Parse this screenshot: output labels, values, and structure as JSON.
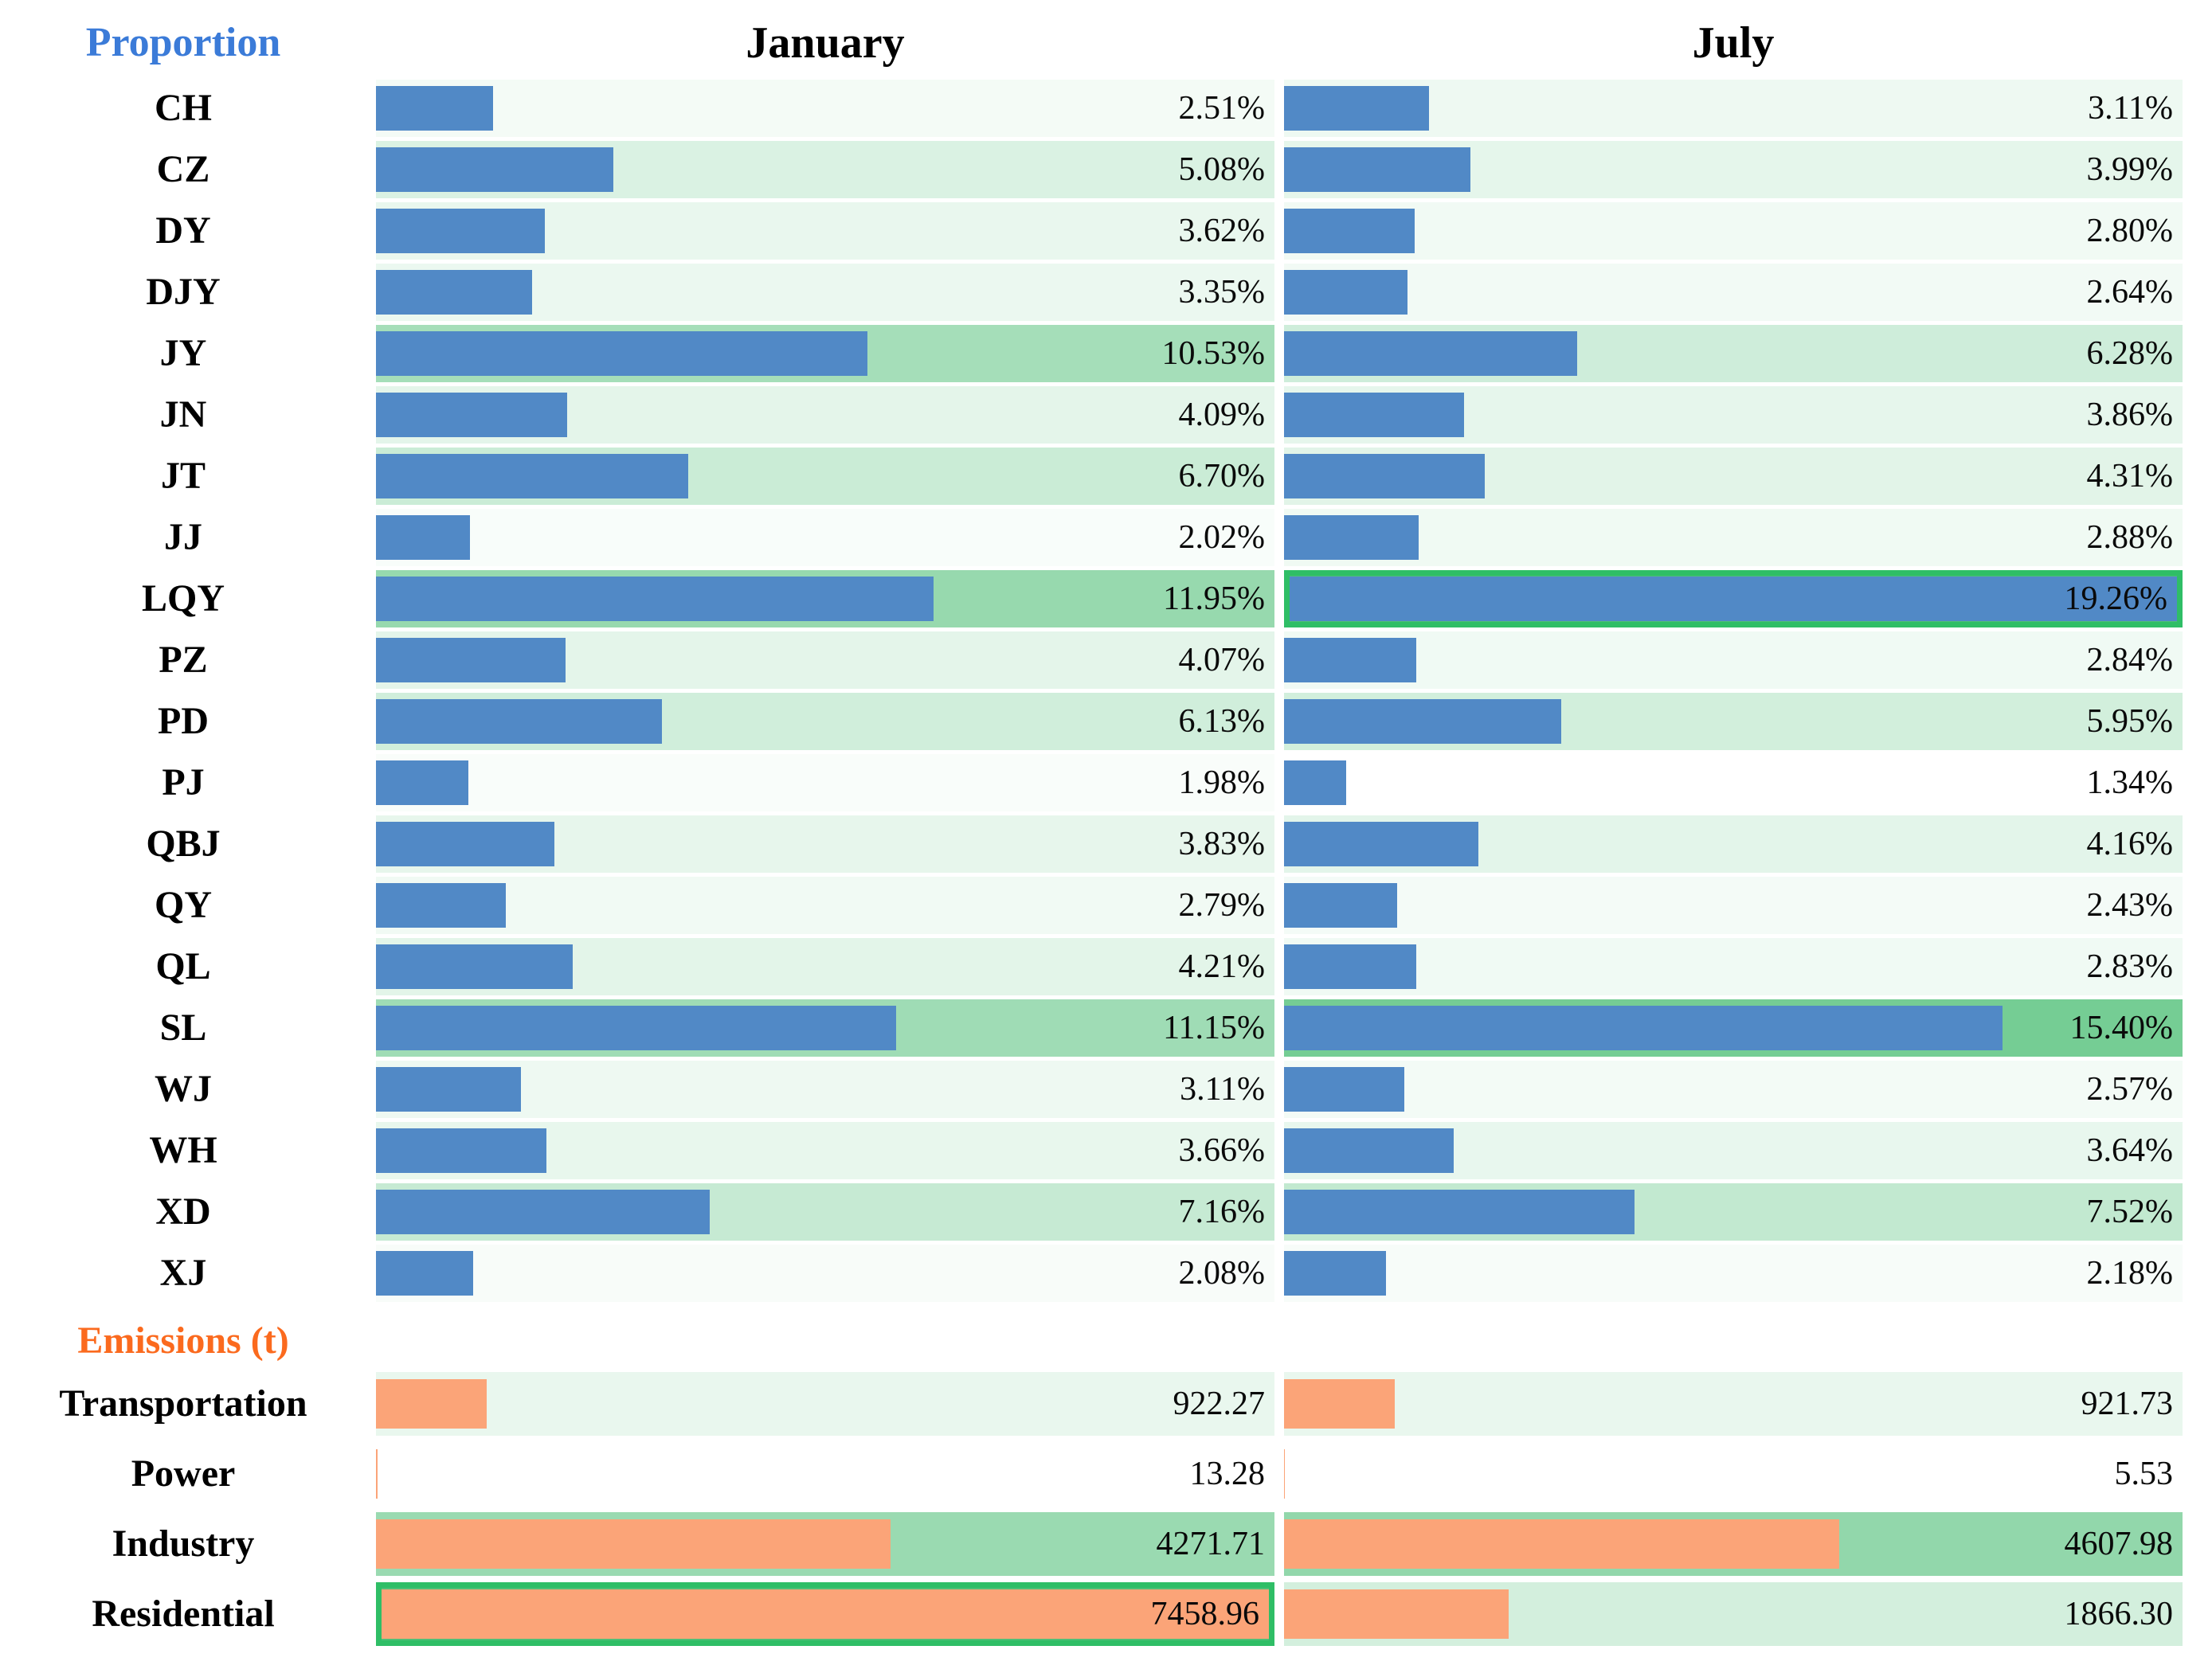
{
  "header": {
    "proportion": "Proportion",
    "january": "January",
    "july": "July",
    "emissions": "Emissions (t)"
  },
  "colors": {
    "blue_bar": "#5189C6",
    "orange_bar": "#FBA478",
    "highlight_border": "#2FBE66",
    "scale_min_color": "#FFFFFF",
    "scale_max_color": "#4FBF77",
    "proportion_header": "#3B7BD8",
    "emissions_header": "#FB6A1E",
    "month_header": "#000000",
    "value_text": "#0a0a0a"
  },
  "chart_data": {
    "type": "bar",
    "columns": [
      "January",
      "July"
    ],
    "legend_position": "none",
    "grid": false,
    "sections": [
      {
        "name": "Proportion",
        "unit": "%",
        "bar_color_key": "blue_bar",
        "bar_scale_max": 19.26,
        "color_scale": {
          "min": 1.34,
          "max": 19.26
        },
        "rows": [
          {
            "label": "CH",
            "january": {
              "value": 2.51,
              "text": "2.51%"
            },
            "july": {
              "value": 3.11,
              "text": "3.11%"
            }
          },
          {
            "label": "CZ",
            "january": {
              "value": 5.08,
              "text": "5.08%"
            },
            "july": {
              "value": 3.99,
              "text": "3.99%"
            }
          },
          {
            "label": "DY",
            "january": {
              "value": 3.62,
              "text": "3.62%"
            },
            "july": {
              "value": 2.8,
              "text": "2.80%"
            }
          },
          {
            "label": "DJY",
            "january": {
              "value": 3.35,
              "text": "3.35%"
            },
            "july": {
              "value": 2.64,
              "text": "2.64%"
            }
          },
          {
            "label": "JY",
            "january": {
              "value": 10.53,
              "text": "10.53%"
            },
            "july": {
              "value": 6.28,
              "text": "6.28%"
            }
          },
          {
            "label": "JN",
            "january": {
              "value": 4.09,
              "text": "4.09%"
            },
            "july": {
              "value": 3.86,
              "text": "3.86%"
            }
          },
          {
            "label": "JT",
            "january": {
              "value": 6.7,
              "text": "6.70%"
            },
            "july": {
              "value": 4.31,
              "text": "4.31%"
            }
          },
          {
            "label": "JJ",
            "january": {
              "value": 2.02,
              "text": "2.02%"
            },
            "july": {
              "value": 2.88,
              "text": "2.88%"
            }
          },
          {
            "label": "LQY",
            "january": {
              "value": 11.95,
              "text": "11.95%"
            },
            "july": {
              "value": 19.26,
              "text": "19.26%"
            },
            "highlight": "july"
          },
          {
            "label": "PZ",
            "january": {
              "value": 4.07,
              "text": "4.07%"
            },
            "july": {
              "value": 2.84,
              "text": "2.84%"
            }
          },
          {
            "label": "PD",
            "january": {
              "value": 6.13,
              "text": "6.13%"
            },
            "july": {
              "value": 5.95,
              "text": "5.95%"
            }
          },
          {
            "label": "PJ",
            "january": {
              "value": 1.98,
              "text": "1.98%"
            },
            "july": {
              "value": 1.34,
              "text": "1.34%"
            }
          },
          {
            "label": "QBJ",
            "january": {
              "value": 3.83,
              "text": "3.83%"
            },
            "july": {
              "value": 4.16,
              "text": "4.16%"
            }
          },
          {
            "label": "QY",
            "january": {
              "value": 2.79,
              "text": "2.79%"
            },
            "july": {
              "value": 2.43,
              "text": "2.43%"
            }
          },
          {
            "label": "QL",
            "january": {
              "value": 4.21,
              "text": "4.21%"
            },
            "july": {
              "value": 2.83,
              "text": "2.83%"
            }
          },
          {
            "label": "SL",
            "january": {
              "value": 11.15,
              "text": "11.15%"
            },
            "july": {
              "value": 15.4,
              "text": "15.40%"
            }
          },
          {
            "label": "WJ",
            "january": {
              "value": 3.11,
              "text": "3.11%"
            },
            "july": {
              "value": 2.57,
              "text": "2.57%"
            }
          },
          {
            "label": "WH",
            "january": {
              "value": 3.66,
              "text": "3.66%"
            },
            "july": {
              "value": 3.64,
              "text": "3.64%"
            }
          },
          {
            "label": "XD",
            "january": {
              "value": 7.16,
              "text": "7.16%"
            },
            "july": {
              "value": 7.52,
              "text": "7.52%"
            }
          },
          {
            "label": "XJ",
            "january": {
              "value": 2.08,
              "text": "2.08%"
            },
            "july": {
              "value": 2.18,
              "text": "2.18%"
            }
          }
        ]
      },
      {
        "name": "Emissions (t)",
        "unit": "t",
        "bar_color_key": "orange_bar",
        "bar_scale_max": 7458.96,
        "color_scale": {
          "min": 5.53,
          "max": 7458.96
        },
        "rows": [
          {
            "label": "Transportation",
            "january": {
              "value": 922.27,
              "text": "922.27"
            },
            "july": {
              "value": 921.73,
              "text": "921.73"
            }
          },
          {
            "label": "Power",
            "january": {
              "value": 13.28,
              "text": "13.28"
            },
            "july": {
              "value": 5.53,
              "text": "5.53"
            }
          },
          {
            "label": "Industry",
            "january": {
              "value": 4271.71,
              "text": "4271.71"
            },
            "july": {
              "value": 4607.98,
              "text": "4607.98"
            }
          },
          {
            "label": "Residential",
            "january": {
              "value": 7458.96,
              "text": "7458.96"
            },
            "july": {
              "value": 1866.3,
              "text": "1866.30"
            },
            "highlight": "january"
          }
        ]
      }
    ]
  }
}
